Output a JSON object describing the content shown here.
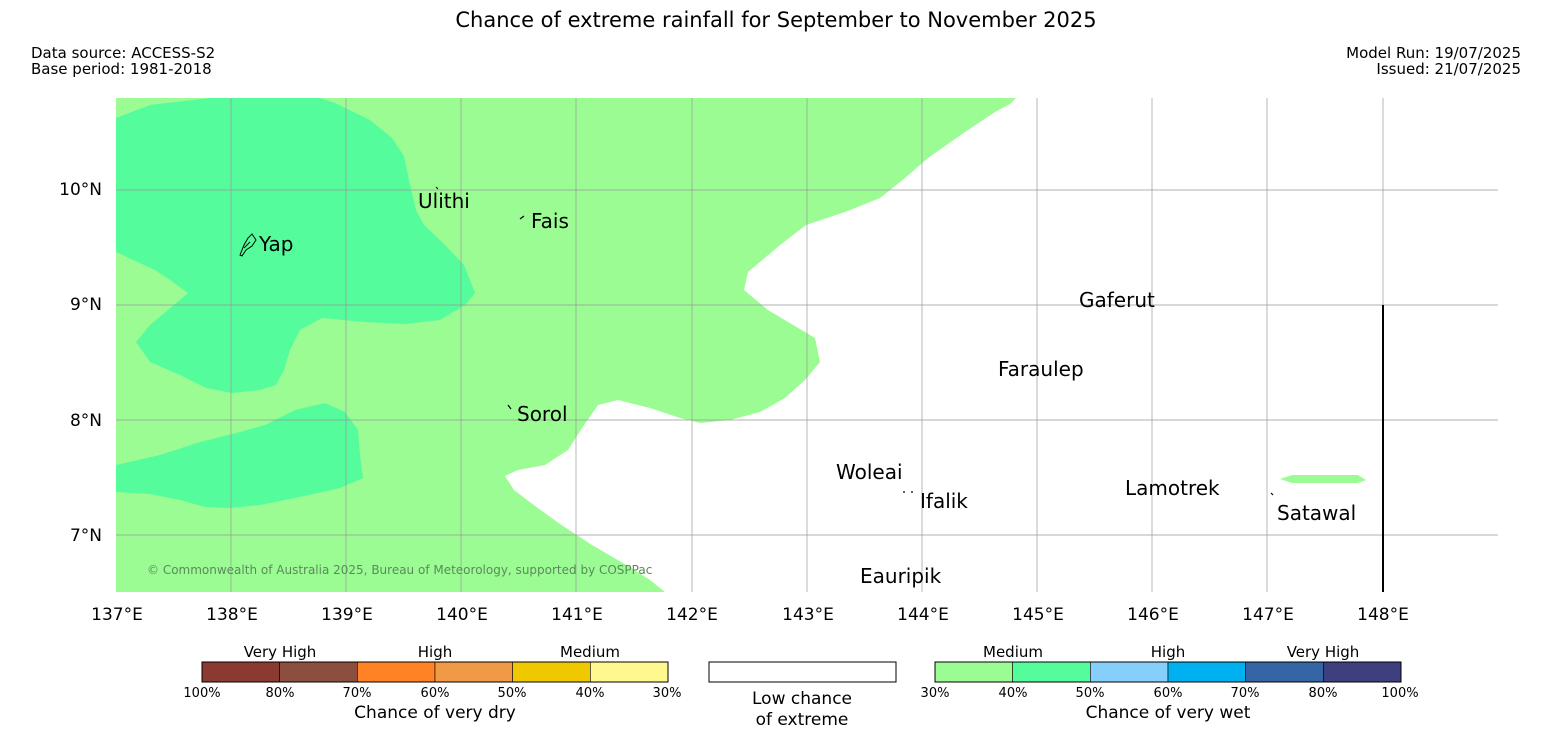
{
  "title": "Chance of extreme rainfall for September to November 2025",
  "meta": {
    "data_source": "Data source: ACCESS-S2",
    "base_period": "Base period: 1981-2018",
    "model_run": "Model Run: 19/07/2025",
    "issued": "Issued: 21/07/2025"
  },
  "map": {
    "copyright": "© Commonwealth of Australia 2025, Bureau of Meteorology, supported by COSPPac",
    "lat_labels": [
      "10°N",
      "9°N",
      "8°N",
      "7°N"
    ],
    "lon_labels": [
      "137°E",
      "138°E",
      "139°E",
      "140°E",
      "141°E",
      "142°E",
      "143°E",
      "144°E",
      "145°E",
      "146°E",
      "147°E",
      "148°E"
    ],
    "places": [
      "Yap",
      "Ulithi",
      "Fais",
      "Sorol",
      "Gaferut",
      "Faraulep",
      "Woleai",
      "Ifalik",
      "Lamotrek",
      "Satawal",
      "Eauripik"
    ],
    "colors": {
      "medium_wet": "#9cfc94",
      "high_wet": "#54fc9c",
      "land_line": "#000000",
      "grid": "#999999"
    }
  },
  "legend": {
    "dry": {
      "heads": [
        "Very High",
        "High",
        "Medium"
      ],
      "ticks": [
        "100%",
        "80%",
        "70%",
        "60%",
        "50%",
        "40%",
        "30%"
      ],
      "colors": [
        "#8b3a32",
        "#8c4f3f",
        "#ff8224",
        "#f09a47",
        "#f0c800",
        "#fff88f"
      ],
      "caption": "Chance of very dry"
    },
    "low": {
      "line1": "Low chance",
      "line2": "of extreme"
    },
    "wet": {
      "heads": [
        "Medium",
        "High",
        "Very High"
      ],
      "ticks": [
        "30%",
        "40%",
        "50%",
        "60%",
        "70%",
        "80%",
        "100%"
      ],
      "colors": [
        "#9cfc94",
        "#54fc9c",
        "#86cffb",
        "#00b0ef",
        "#3565a5",
        "#3e3f7e"
      ],
      "caption": "Chance of very wet"
    }
  }
}
